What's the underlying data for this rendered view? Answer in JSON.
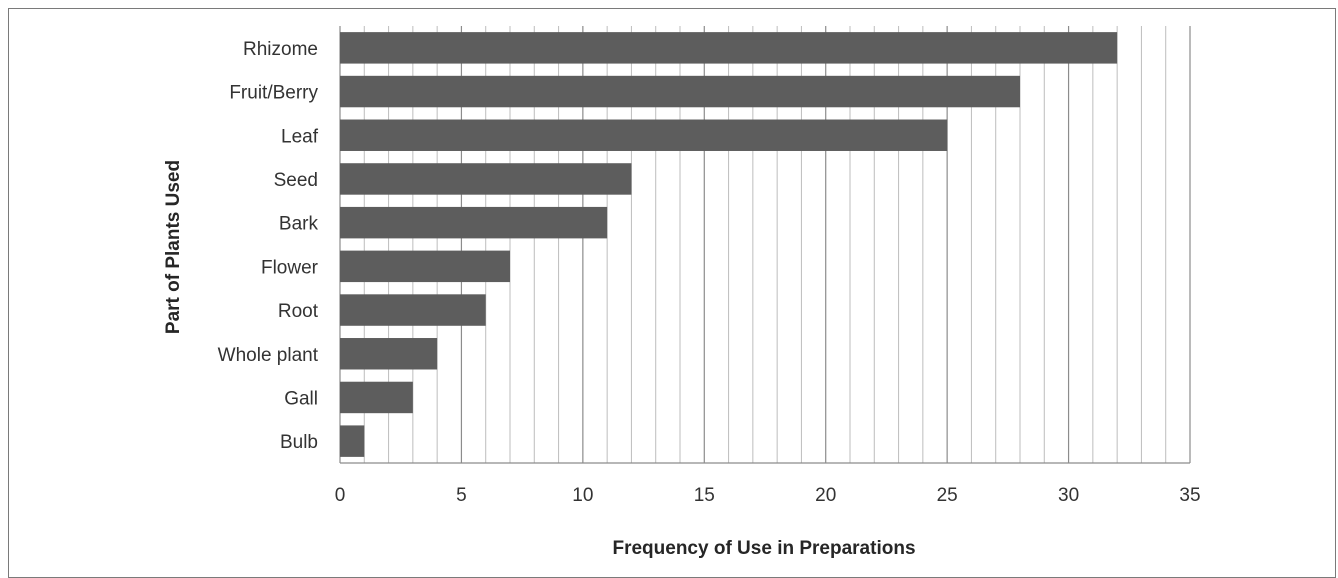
{
  "chart_data": {
    "type": "bar",
    "orientation": "horizontal",
    "categories": [
      "Rhizome",
      "Fruit/Berry",
      "Leaf",
      "Seed",
      "Bark",
      "Flower",
      "Root",
      "Whole plant",
      "Gall",
      "Bulb"
    ],
    "values": [
      32,
      28,
      25,
      12,
      11,
      7,
      6,
      4,
      3,
      1
    ],
    "title": "",
    "xlabel": "Frequency of Use in Preparations",
    "ylabel": "Part of Plants Used",
    "xlim": [
      0,
      35
    ],
    "x_ticks": [
      "0",
      "5",
      "10",
      "15",
      "20",
      "25",
      "30",
      "35"
    ],
    "grid": "vertical, major every 5 and minor every 1",
    "legend": "none",
    "colors": {
      "bar": "#5d5d5d",
      "grid_major": "#8c8c8c",
      "grid_minor": "#bdbdbd",
      "text": "#333333"
    }
  }
}
